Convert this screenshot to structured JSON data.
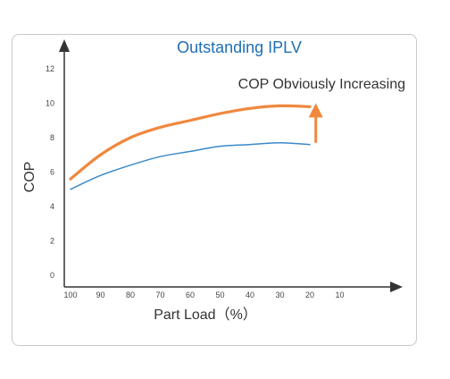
{
  "chart_data": {
    "type": "line",
    "title": "Outstanding IPLV",
    "xlabel": "Part Load（%）",
    "ylabel": "COP",
    "annotation": "COP Obviously Increasing",
    "x_ticks": [
      100,
      90,
      80,
      70,
      60,
      50,
      40,
      30,
      20,
      10
    ],
    "y_ticks": [
      0,
      2,
      4,
      6,
      8,
      10,
      12
    ],
    "xlim": [
      100,
      0
    ],
    "ylim": [
      -1,
      13
    ],
    "grid": false,
    "series": [
      {
        "color": "#f0883e",
        "x": [
          100,
          90,
          80,
          70,
          60,
          50,
          40,
          30,
          20
        ],
        "y": [
          5.6,
          7.0,
          8.0,
          8.6,
          9.0,
          9.4,
          9.7,
          9.85,
          9.8
        ]
      },
      {
        "color": "#3c89c8",
        "x": [
          100,
          90,
          80,
          70,
          60,
          50,
          40,
          30,
          20
        ],
        "y": [
          5.0,
          5.8,
          6.4,
          6.9,
          7.2,
          7.5,
          7.6,
          7.7,
          7.6
        ]
      }
    ],
    "arrow": {
      "x": 18,
      "y_from": 7.7,
      "y_to": 9.9,
      "color": "#f0883e"
    }
  }
}
